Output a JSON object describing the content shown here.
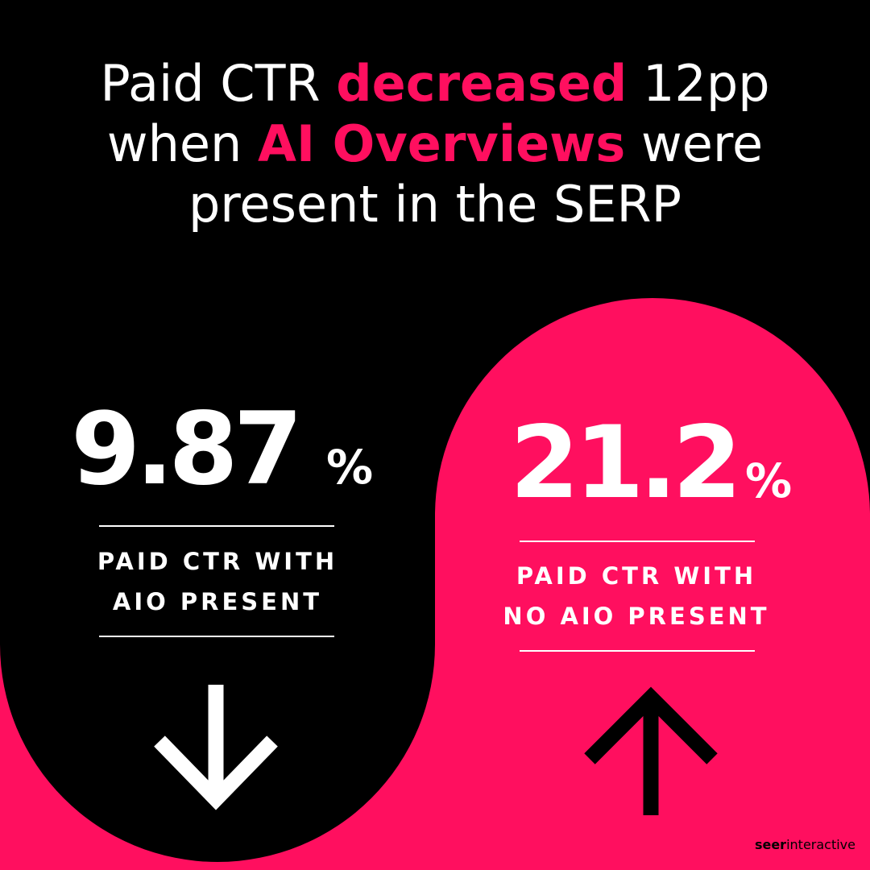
{
  "headline": {
    "lines": [
      [
        {
          "text": "Paid CTR ",
          "accent": false
        },
        {
          "text": "decreased",
          "accent": true
        },
        {
          "text": " 12pp",
          "accent": false
        }
      ],
      [
        {
          "text": "when ",
          "accent": false
        },
        {
          "text": "AI Overviews",
          "accent": true
        },
        {
          "text": " were",
          "accent": false
        }
      ],
      [
        {
          "text": "present in the SERP",
          "accent": false
        }
      ]
    ]
  },
  "stats": [
    {
      "value": "9.87",
      "unit": "%",
      "label_lines": [
        "PAID CTR WITH",
        "AIO PRESENT"
      ]
    },
    {
      "value": "21.2",
      "unit": "%",
      "label_lines": [
        "PAID CTR WITH",
        "NO AIO PRESENT"
      ]
    }
  ],
  "logo": {
    "bold": "seer",
    "regular": "interactive"
  }
}
